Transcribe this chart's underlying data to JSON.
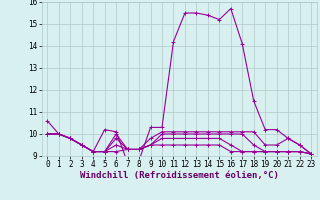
{
  "xlabel": "Windchill (Refroidissement éolien,°C)",
  "x": [
    0,
    1,
    2,
    3,
    4,
    5,
    6,
    7,
    8,
    9,
    10,
    11,
    12,
    13,
    14,
    15,
    16,
    17,
    18,
    19,
    20,
    21,
    22,
    23
  ],
  "lines": [
    [
      10.6,
      10.0,
      9.8,
      9.5,
      9.2,
      10.2,
      10.1,
      8.7,
      8.8,
      10.3,
      10.3,
      14.2,
      15.5,
      15.5,
      15.4,
      15.2,
      15.7,
      14.1,
      11.5,
      10.2,
      10.2,
      9.8,
      9.5,
      9.1
    ],
    [
      10.0,
      10.0,
      9.8,
      9.5,
      9.2,
      9.2,
      10.0,
      9.3,
      9.3,
      9.8,
      10.1,
      10.1,
      10.1,
      10.1,
      10.1,
      10.1,
      10.1,
      10.1,
      10.1,
      9.5,
      9.5,
      9.8,
      9.5,
      9.1
    ],
    [
      10.0,
      10.0,
      9.8,
      9.5,
      9.2,
      9.2,
      9.8,
      9.3,
      9.3,
      9.5,
      10.0,
      10.0,
      10.0,
      10.0,
      10.0,
      10.0,
      10.0,
      10.0,
      9.5,
      9.2,
      9.2,
      9.2,
      9.2,
      9.1
    ],
    [
      10.0,
      10.0,
      9.8,
      9.5,
      9.2,
      9.2,
      9.5,
      9.3,
      9.3,
      9.5,
      9.8,
      9.8,
      9.8,
      9.8,
      9.8,
      9.8,
      9.5,
      9.2,
      9.2,
      9.2,
      9.2,
      9.2,
      9.2,
      9.1
    ],
    [
      10.0,
      10.0,
      9.8,
      9.5,
      9.2,
      9.2,
      9.2,
      9.3,
      9.3,
      9.5,
      9.5,
      9.5,
      9.5,
      9.5,
      9.5,
      9.5,
      9.2,
      9.2,
      9.2,
      9.2,
      9.2,
      9.2,
      9.2,
      9.1
    ]
  ],
  "line_color": "#990099",
  "bg_color": "#d8f0f0",
  "grid_color": "#b0c8c8",
  "ylim": [
    9,
    16
  ],
  "yticks": [
    9,
    10,
    11,
    12,
    13,
    14,
    15,
    16
  ],
  "xticks": [
    0,
    1,
    2,
    3,
    4,
    5,
    6,
    7,
    8,
    9,
    10,
    11,
    12,
    13,
    14,
    15,
    16,
    17,
    18,
    19,
    20,
    21,
    22,
    23
  ],
  "marker": "+",
  "markersize": 3,
  "linewidth": 0.8,
  "xlabel_fontsize": 6.5,
  "tick_fontsize": 5.5
}
